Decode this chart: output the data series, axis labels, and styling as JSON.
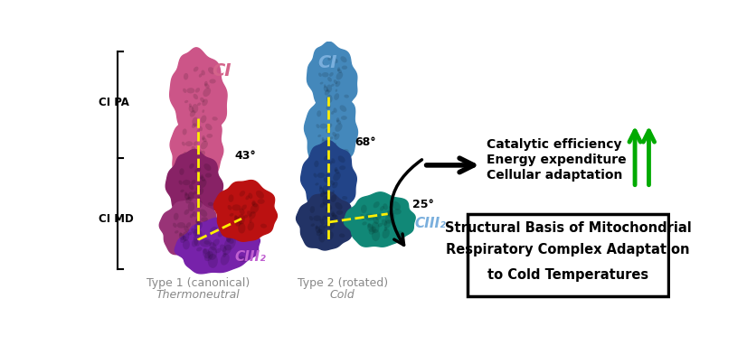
{
  "bg_color": "#ffffff",
  "left_bracket_label_top": "CI PA",
  "left_bracket_label_bottom": "CI MD",
  "type1_label": "Type 1 (canonical)",
  "type1_sublabel": "Thermoneutral",
  "type1_CI_label": "CI",
  "type1_CIII_label": "CIII₂",
  "type1_angle": "43°",
  "type1_CI_color": "#d4638a",
  "type1_CIII_color": "#c060d0",
  "type1_label_color": "#888888",
  "type2_label": "Type 2 (rotated)",
  "type2_sublabel": "Cold",
  "type2_CI_label": "CI",
  "type2_CIII_label": "CIII₂",
  "type2_angle_top": "68°",
  "type2_angle_bottom": "25°",
  "type2_CI_color": "#7aafdd",
  "type2_CIII_color": "#3a6ab8",
  "type2_label_color": "#888888",
  "arrow_texts": [
    "Catalytic efficiency",
    "Energy expenditure",
    "Cellular adaptation"
  ],
  "up_arrow_color": "#00aa00",
  "box_title_lines": [
    "Structural Basis of Mitochondrial",
    "Respiratory Complex Adaptation",
    "to Cold Temperatures"
  ],
  "yellow_dash_color": "#ffee00",
  "bracket_color": "#000000",
  "t1_ci_fc": "#cc5588",
  "t1_ci_mid_fc": "#882266",
  "t1_ci_lo_fc": "#993377",
  "t1_red_fc": "#bb1111",
  "t1_purple_fc": "#7722aa",
  "t2_ci_fc": "#4488bb",
  "t2_ci_mid_fc": "#224488",
  "t2_ci_lo_fc": "#223366",
  "t2_teal_fc": "#118877"
}
